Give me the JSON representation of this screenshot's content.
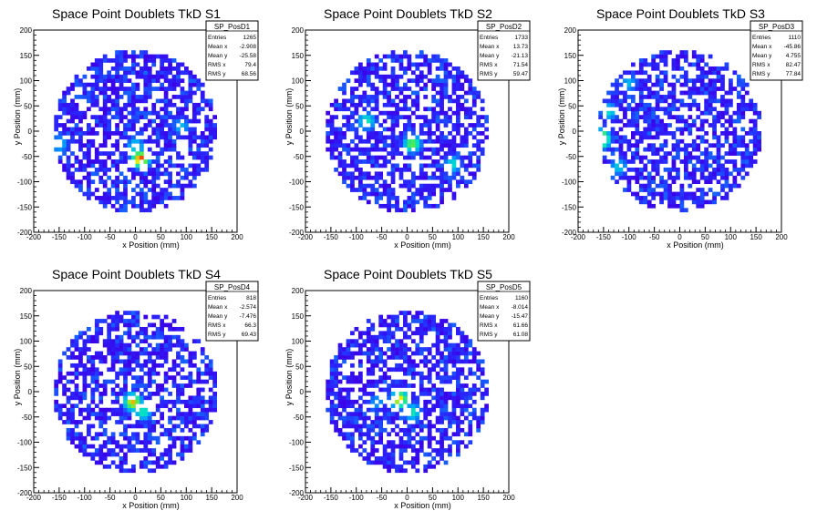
{
  "chart_data": [
    {
      "type": "heatmap",
      "title": "Space Point Doublets TkD S1",
      "xlabel": "x Position (mm)",
      "ylabel": "y Position (mm)",
      "xlim": [
        -200,
        200
      ],
      "ylim": [
        -200,
        200
      ],
      "ticks": [
        -200,
        -150,
        -100,
        -50,
        0,
        50,
        100,
        150,
        200
      ],
      "stats": {
        "name": "SP_PosD1",
        "rows": [
          {
            "label": "Entries",
            "value": "1265"
          },
          {
            "label": "Mean x",
            "value": "-2.908"
          },
          {
            "label": "Mean y",
            "value": "-25.58"
          },
          {
            "label": "RMS x",
            "value": "79.4"
          },
          {
            "label": "RMS y",
            "value": "68.56"
          }
        ]
      },
      "hotspots": [
        {
          "x": 10,
          "y": -55,
          "level": 1.0
        },
        {
          "x": 0,
          "y": -30,
          "level": 0.55
        },
        {
          "x": -150,
          "y": -25,
          "level": 0.5
        },
        {
          "x": 90,
          "y": 10,
          "level": 0.45
        }
      ]
    },
    {
      "type": "heatmap",
      "title": "Space Point Doublets TkD S2",
      "xlabel": "x Position (mm)",
      "ylabel": "y Position (mm)",
      "xlim": [
        -200,
        200
      ],
      "ylim": [
        -200,
        200
      ],
      "ticks": [
        -200,
        -150,
        -100,
        -50,
        0,
        50,
        100,
        150,
        200
      ],
      "stats": {
        "name": "SP_PosD2",
        "rows": [
          {
            "label": "Entries",
            "value": "1733"
          },
          {
            "label": "Mean x",
            "value": "13.73"
          },
          {
            "label": "Mean y",
            "value": "-21.13"
          },
          {
            "label": "RMS x",
            "value": "71.54"
          },
          {
            "label": "RMS y",
            "value": "59.47"
          }
        ]
      },
      "hotspots": [
        {
          "x": 10,
          "y": -25,
          "level": 0.75
        },
        {
          "x": -80,
          "y": 20,
          "level": 0.6
        },
        {
          "x": 90,
          "y": -65,
          "level": 0.55
        }
      ]
    },
    {
      "type": "heatmap",
      "title": "Space Point Doublets TkD S3",
      "xlabel": "x Position (mm)",
      "ylabel": "y Position (mm)",
      "xlim": [
        -200,
        200
      ],
      "ylim": [
        -200,
        200
      ],
      "ticks": [
        -200,
        -150,
        -100,
        -50,
        0,
        50,
        100,
        150,
        200
      ],
      "stats": {
        "name": "SP_PosD3",
        "rows": [
          {
            "label": "Entries",
            "value": "1110"
          },
          {
            "label": "Mean x",
            "value": "-45.86"
          },
          {
            "label": "Mean y",
            "value": "4.755"
          },
          {
            "label": "RMS x",
            "value": "82.47"
          },
          {
            "label": "RMS y",
            "value": "77.84"
          }
        ]
      },
      "hotspots": [
        {
          "x": -155,
          "y": -15,
          "level": 1.0
        },
        {
          "x": -140,
          "y": 40,
          "level": 0.55
        },
        {
          "x": -120,
          "y": -70,
          "level": 0.5
        },
        {
          "x": -100,
          "y": 95,
          "level": 0.45
        }
      ]
    },
    {
      "type": "heatmap",
      "title": "Space Point Doublets TkD S4",
      "xlabel": "x Position (mm)",
      "ylabel": "y Position (mm)",
      "xlim": [
        -200,
        200
      ],
      "ylim": [
        -200,
        200
      ],
      "ticks": [
        -200,
        -150,
        -100,
        -50,
        0,
        50,
        100,
        150,
        200
      ],
      "stats": {
        "name": "SP_PosD4",
        "rows": [
          {
            "label": "Entries",
            "value": "818"
          },
          {
            "label": "Mean x",
            "value": "-2.574"
          },
          {
            "label": "Mean y",
            "value": "-7.476"
          },
          {
            "label": "RMS x",
            "value": "66.3"
          },
          {
            "label": "RMS y",
            "value": "69.43"
          }
        ]
      },
      "hotspots": [
        {
          "x": -5,
          "y": -20,
          "level": 0.9
        },
        {
          "x": 15,
          "y": -40,
          "level": 0.6
        }
      ]
    },
    {
      "type": "heatmap",
      "title": "Space Point Doublets TkD S5",
      "xlabel": "x Position (mm)",
      "ylabel": "y Position (mm)",
      "xlim": [
        -200,
        200
      ],
      "ylim": [
        -200,
        200
      ],
      "ticks": [
        -200,
        -150,
        -100,
        -50,
        0,
        50,
        100,
        150,
        200
      ],
      "stats": {
        "name": "SP_PosD5",
        "rows": [
          {
            "label": "Entries",
            "value": "1160"
          },
          {
            "label": "Mean x",
            "value": "-8.014"
          },
          {
            "label": "Mean y",
            "value": "-15.47"
          },
          {
            "label": "RMS x",
            "value": "61.66"
          },
          {
            "label": "RMS y",
            "value": "61.08"
          }
        ]
      },
      "hotspots": [
        {
          "x": -15,
          "y": -15,
          "level": 0.9
        },
        {
          "x": 10,
          "y": -40,
          "level": 0.6
        },
        {
          "x": -60,
          "y": -20,
          "level": 0.4
        }
      ]
    }
  ]
}
